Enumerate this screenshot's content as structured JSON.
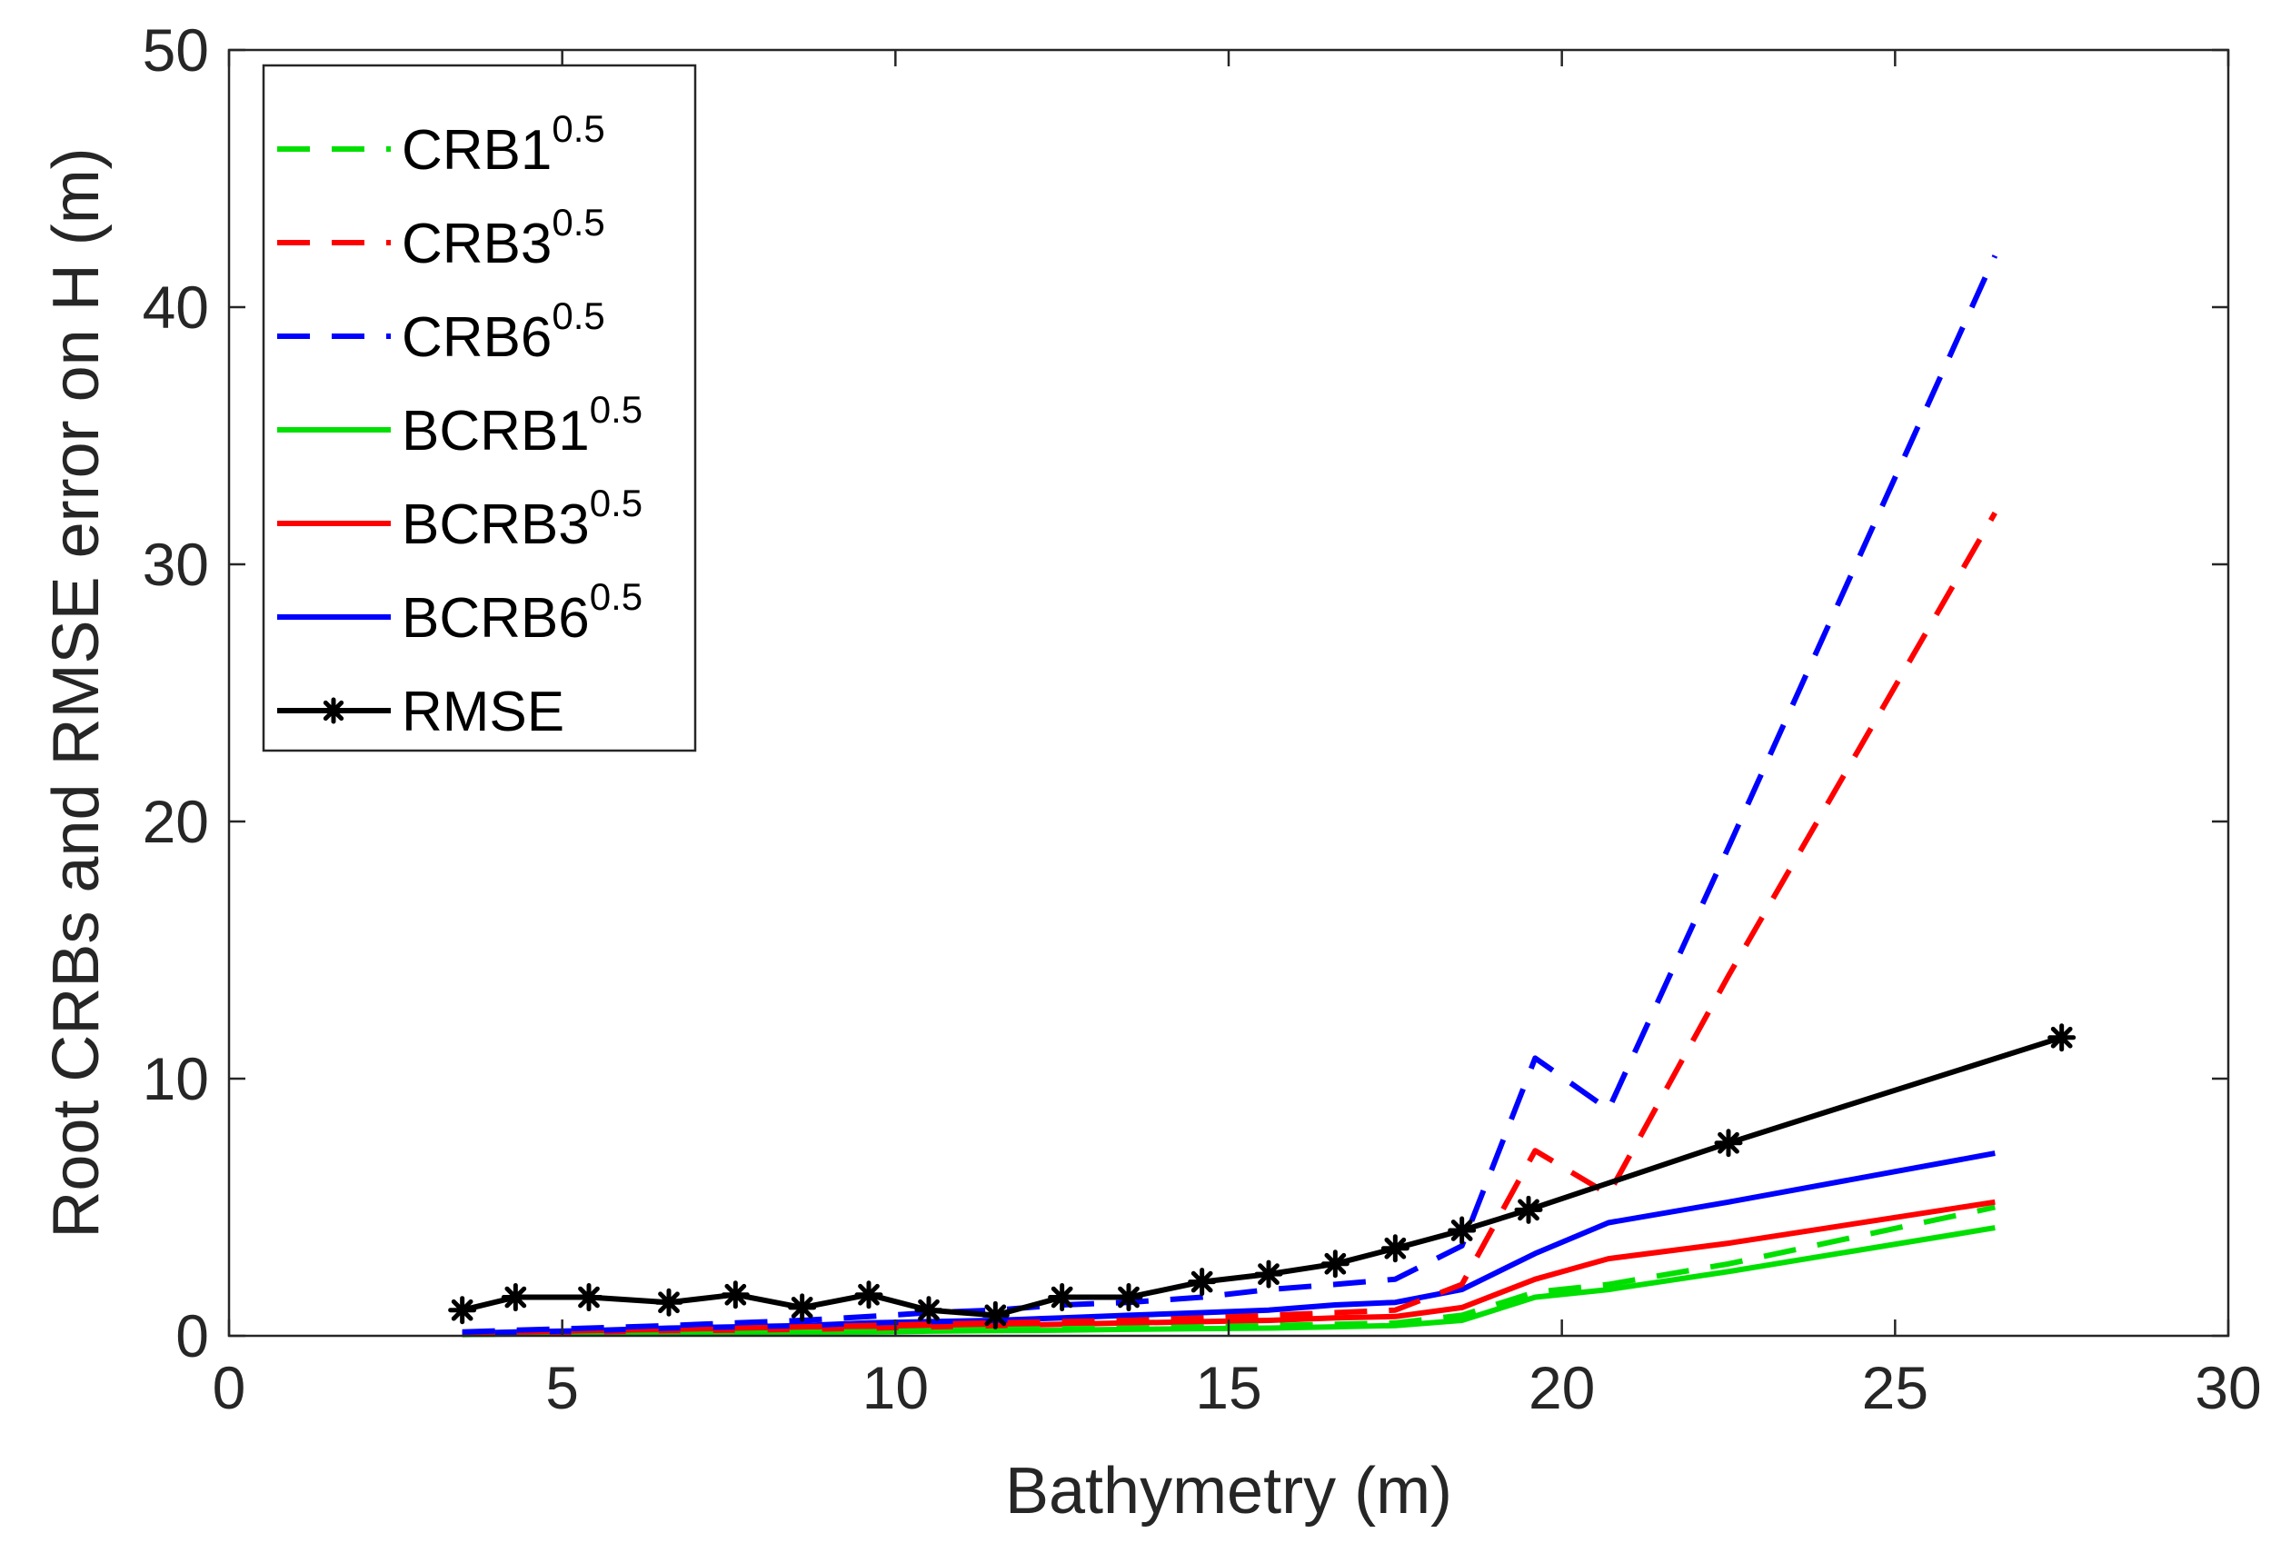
{
  "chart_data": {
    "type": "line",
    "xlabel": "Bathymetry (m)",
    "ylabel": "Root CRBs and RMSE error on H (m)",
    "xlim": [
      0,
      30
    ],
    "ylim": [
      0,
      50
    ],
    "xticks": [
      0,
      5,
      10,
      15,
      20,
      25,
      30
    ],
    "yticks": [
      0,
      10,
      20,
      30,
      40,
      50
    ],
    "grid": false,
    "legend_position": "top-left",
    "series": [
      {
        "name": "CRB1",
        "name_sup": "0.5",
        "color": "#00e000",
        "dash": true,
        "marker": "none",
        "x": [
          3.5,
          4.3,
          5.4,
          6.6,
          7.6,
          8.6,
          9.6,
          10.5,
          11.5,
          12.5,
          13.5,
          14.6,
          15.6,
          16.6,
          17.5,
          18.5,
          19.6,
          20.7,
          22.5,
          26.5
        ],
        "y": [
          0.05,
          0.07,
          0.08,
          0.1,
          0.12,
          0.14,
          0.16,
          0.2,
          0.25,
          0.28,
          0.3,
          0.35,
          0.4,
          0.45,
          0.5,
          0.8,
          1.7,
          2.0,
          2.8,
          5.0
        ]
      },
      {
        "name": "CRB3",
        "name_sup": "0.5",
        "color": "#ff0000",
        "dash": true,
        "marker": "none",
        "x": [
          3.5,
          4.3,
          5.4,
          6.6,
          7.6,
          8.6,
          9.6,
          10.5,
          11.5,
          12.5,
          13.5,
          14.6,
          15.6,
          16.6,
          17.5,
          18.5,
          19.6,
          20.7,
          22.5,
          26.5
        ],
        "y": [
          0.1,
          0.15,
          0.2,
          0.25,
          0.3,
          0.35,
          0.4,
          0.45,
          0.5,
          0.55,
          0.6,
          0.7,
          0.8,
          0.9,
          1.0,
          2.0,
          7.2,
          5.5,
          14.0,
          32.0
        ]
      },
      {
        "name": "CRB6",
        "name_sup": "0.5",
        "color": "#0000ff",
        "dash": true,
        "marker": "none",
        "x": [
          3.5,
          4.3,
          5.4,
          6.6,
          7.6,
          8.6,
          9.6,
          10.5,
          11.5,
          12.5,
          13.5,
          14.6,
          15.6,
          16.6,
          17.5,
          18.5,
          19.6,
          20.7,
          22.5,
          26.5
        ],
        "y": [
          0.15,
          0.22,
          0.3,
          0.4,
          0.5,
          0.6,
          0.75,
          0.9,
          1.0,
          1.2,
          1.3,
          1.5,
          1.8,
          2.0,
          2.2,
          3.5,
          10.8,
          8.8,
          19.0,
          42.0
        ]
      },
      {
        "name": "BCRB1",
        "name_sup": "0.5",
        "color": "#00e000",
        "dash": false,
        "marker": "none",
        "x": [
          3.5,
          4.3,
          5.4,
          6.6,
          7.6,
          8.6,
          9.6,
          10.5,
          11.5,
          12.5,
          13.5,
          14.6,
          15.6,
          16.6,
          17.5,
          18.5,
          19.6,
          20.7,
          22.5,
          26.5
        ],
        "y": [
          0.05,
          0.07,
          0.08,
          0.1,
          0.12,
          0.14,
          0.15,
          0.18,
          0.2,
          0.22,
          0.25,
          0.28,
          0.3,
          0.35,
          0.4,
          0.6,
          1.5,
          1.8,
          2.5,
          4.2
        ]
      },
      {
        "name": "BCRB3",
        "name_sup": "0.5",
        "color": "#ff0000",
        "dash": false,
        "marker": "none",
        "x": [
          3.5,
          4.3,
          5.4,
          6.6,
          7.6,
          8.6,
          9.6,
          10.5,
          11.5,
          12.5,
          13.5,
          14.6,
          15.6,
          16.6,
          17.5,
          18.5,
          19.6,
          20.7,
          22.5,
          26.5
        ],
        "y": [
          0.08,
          0.1,
          0.15,
          0.2,
          0.22,
          0.25,
          0.3,
          0.35,
          0.4,
          0.45,
          0.5,
          0.55,
          0.6,
          0.7,
          0.75,
          1.1,
          2.2,
          3.0,
          3.6,
          5.2
        ]
      },
      {
        "name": "BCRB6",
        "name_sup": "0.5",
        "color": "#0000ff",
        "dash": false,
        "marker": "none",
        "x": [
          3.5,
          4.3,
          5.4,
          6.6,
          7.6,
          8.6,
          9.6,
          10.5,
          11.5,
          12.5,
          13.5,
          14.6,
          15.6,
          16.6,
          17.5,
          18.5,
          19.6,
          20.7,
          22.5,
          26.5
        ],
        "y": [
          0.1,
          0.15,
          0.2,
          0.3,
          0.35,
          0.4,
          0.5,
          0.55,
          0.6,
          0.7,
          0.8,
          0.9,
          1.0,
          1.2,
          1.3,
          1.8,
          3.2,
          4.4,
          5.2,
          7.1
        ]
      },
      {
        "name": "RMSE",
        "name_sup": "",
        "color": "#000000",
        "dash": false,
        "marker": "asterisk",
        "x": [
          3.5,
          4.3,
          5.4,
          6.6,
          7.6,
          8.6,
          9.6,
          10.5,
          11.5,
          12.5,
          13.5,
          14.6,
          15.6,
          16.6,
          17.5,
          18.5,
          19.5,
          22.5,
          27.5
        ],
        "y": [
          1.0,
          1.5,
          1.5,
          1.3,
          1.6,
          1.1,
          1.6,
          1.0,
          0.8,
          1.5,
          1.5,
          2.1,
          2.4,
          2.8,
          3.4,
          4.1,
          4.9,
          7.5,
          11.6
        ]
      }
    ]
  }
}
